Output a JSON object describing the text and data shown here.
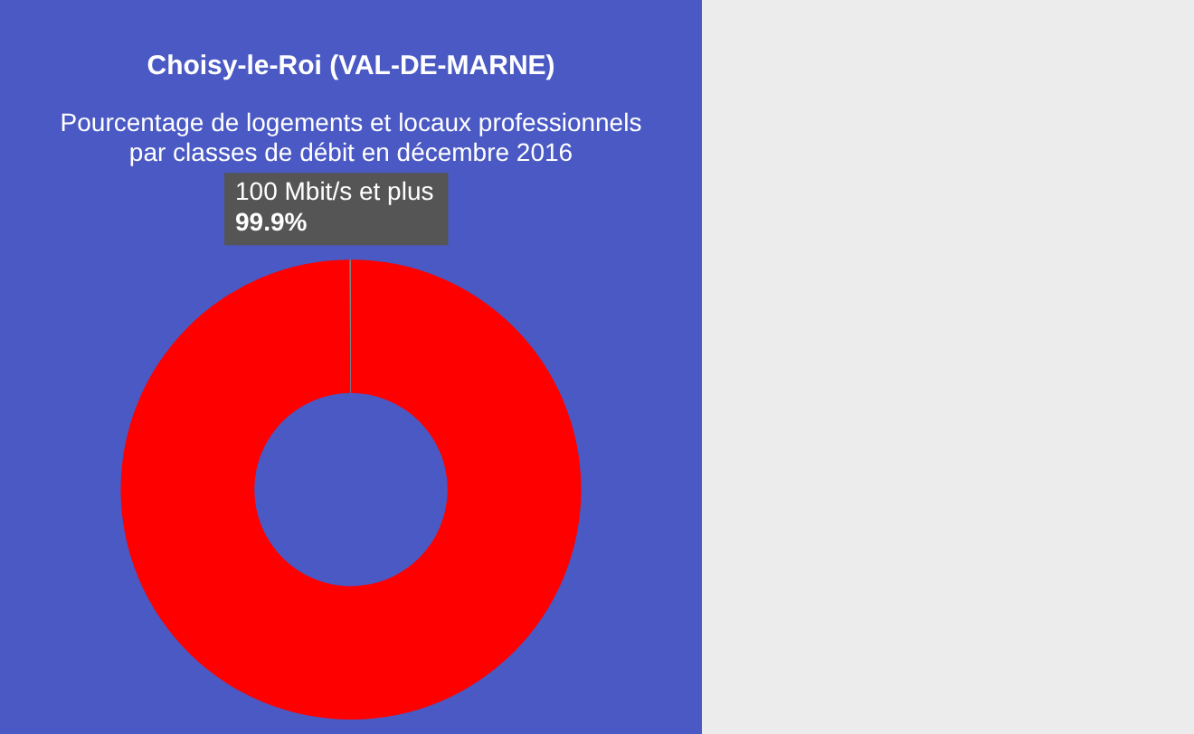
{
  "chart_data": {
    "type": "donut",
    "title": "Choisy-le-Roi (VAL-DE-MARNE)",
    "subtitle": "Pourcentage de logements et locaux professionnels\npar classes de débit en décembre 2016",
    "categories": [
      "100 Mbit/s et plus",
      null
    ],
    "values": [
      99.9,
      0.1
    ],
    "colors": [
      "#ff0000",
      "#808080"
    ],
    "value_labels": [
      "99.9%",
      null
    ],
    "legend": false
  }
}
